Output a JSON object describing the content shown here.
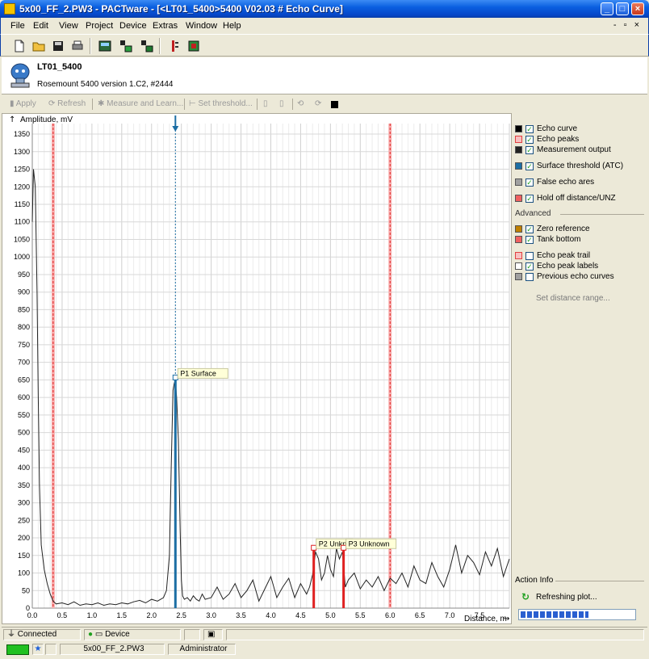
{
  "window": {
    "title": "5x00_FF_2.PW3 - PACTware - [<LT01_5400>5400 V02.03 # Echo Curve]",
    "controls": [
      "_",
      "□",
      "×"
    ]
  },
  "menu": {
    "items": [
      "File",
      "Edit",
      "View",
      "Project",
      "Device",
      "Extras",
      "Window",
      "Help"
    ],
    "mdi_controls": "- ▫ ×"
  },
  "device": {
    "tag": "LT01_5400",
    "version": "Rosemount 5400 version 1.C2, #2444"
  },
  "curve_toolbar": {
    "apply": "Apply",
    "refresh": "Refresh",
    "measure": "Measure and Learn...",
    "set_threshold": "Set threshold..."
  },
  "legend": {
    "items": [
      {
        "label": "Echo curve",
        "checked": true,
        "color": "#000000"
      },
      {
        "label": "Echo peaks",
        "checked": true,
        "color": "#e04040"
      },
      {
        "label": "Measurement output",
        "checked": true,
        "color": "#222222"
      },
      {
        "label": "Surface threshold (ATC)",
        "checked": true,
        "color": "#1c6ea4"
      },
      {
        "label": "False echo ares",
        "checked": true,
        "color": "#a0a0a0"
      },
      {
        "label": "Hold off distance/UNZ",
        "checked": true,
        "color": "#e04040"
      }
    ],
    "advanced_label": "Advanced",
    "advanced": [
      {
        "label": "Zero reference",
        "checked": true,
        "color": "#c08000"
      },
      {
        "label": "Tank bottom",
        "checked": true,
        "color": "#e04040"
      },
      {
        "label": "Echo peak trail",
        "checked": false,
        "color": "#e04040"
      },
      {
        "label": "Echo peak labels",
        "checked": true,
        "color": "#ffffff"
      },
      {
        "label": "Previous echo curves",
        "checked": false,
        "color": "#a0a0a0"
      }
    ],
    "set_distance_range": "Set distance range..."
  },
  "action_info": {
    "label": "Action Info",
    "text": "Refreshing plot...",
    "progress": 0.6
  },
  "status": {
    "connected": "Connected",
    "device": "Device",
    "project": "5x00_FF_2.PW3",
    "user": "Administrator"
  },
  "chart_data": {
    "type": "line",
    "ylabel": "Amplitude, mV",
    "xlabel": "Distance, m",
    "xlim": [
      0,
      8
    ],
    "ylim": [
      0,
      1380
    ],
    "x_ticks": [
      "0.0",
      "0.5",
      "1.0",
      "1.5",
      "2.0",
      "2.5",
      "3.0",
      "3.5",
      "4.0",
      "4.5",
      "5.0",
      "5.5",
      "6.0",
      "6.5",
      "7.0",
      "7.5"
    ],
    "y_ticks": [
      "0",
      "50",
      "100",
      "150",
      "200",
      "250",
      "300",
      "350",
      "400",
      "450",
      "500",
      "550",
      "600",
      "650",
      "700",
      "750",
      "800",
      "850",
      "900",
      "950",
      "1000",
      "1050",
      "1100",
      "1150",
      "1200",
      "1250",
      "1300",
      "1350"
    ],
    "grid": true,
    "hold_off_distance": 0.35,
    "tank_bottom": 6.0,
    "surface_threshold_x": 2.4,
    "peaks": [
      {
        "label": "P1 Surface",
        "x": 2.4,
        "amplitude": 650
      },
      {
        "label": "P2 Unkn",
        "x": 4.72,
        "amplitude": 165
      },
      {
        "label": "P3 Unknown",
        "x": 5.22,
        "amplitude": 165
      }
    ],
    "series": [
      {
        "x": [
          0.0,
          0.02,
          0.05,
          0.08,
          0.1,
          0.12,
          0.15,
          0.2,
          0.25,
          0.3,
          0.35,
          0.4,
          0.5,
          0.6,
          0.7,
          0.8,
          0.9,
          1.0,
          1.1,
          1.2,
          1.3,
          1.4,
          1.5,
          1.6,
          1.7,
          1.8,
          1.9,
          2.0,
          2.1,
          2.2,
          2.25,
          2.3,
          2.33,
          2.36,
          2.38,
          2.4,
          2.42,
          2.45,
          2.48,
          2.5,
          2.52,
          2.55,
          2.6,
          2.65,
          2.7,
          2.75,
          2.8,
          2.85,
          2.9,
          3.0,
          3.1,
          3.2,
          3.3,
          3.4,
          3.5,
          3.6,
          3.7,
          3.8,
          3.9,
          4.0,
          4.1,
          4.2,
          4.3,
          4.4,
          4.5,
          4.6,
          4.65,
          4.7,
          4.75,
          4.8,
          4.85,
          4.9,
          4.95,
          5.0,
          5.05,
          5.1,
          5.15,
          5.2,
          5.25,
          5.3,
          5.4,
          5.5,
          5.6,
          5.7,
          5.8,
          5.9,
          6.0,
          6.1,
          6.2,
          6.3,
          6.4,
          6.5,
          6.6,
          6.7,
          6.8,
          6.9,
          7.0,
          7.1,
          7.2,
          7.3,
          7.4,
          7.5,
          7.6,
          7.7,
          7.8,
          7.9,
          8.0
        ],
        "y": [
          1100,
          1250,
          1200,
          900,
          600,
          350,
          180,
          110,
          70,
          40,
          20,
          12,
          15,
          10,
          18,
          8,
          12,
          10,
          15,
          8,
          12,
          10,
          15,
          12,
          18,
          22,
          15,
          25,
          20,
          30,
          50,
          150,
          400,
          620,
          640,
          650,
          600,
          480,
          220,
          80,
          35,
          25,
          30,
          20,
          35,
          25,
          20,
          40,
          25,
          30,
          60,
          25,
          40,
          70,
          30,
          50,
          80,
          20,
          55,
          90,
          30,
          60,
          85,
          30,
          70,
          40,
          60,
          95,
          160,
          140,
          80,
          100,
          150,
          110,
          90,
          170,
          140,
          160,
          60,
          80,
          100,
          55,
          80,
          60,
          90,
          50,
          85,
          70,
          100,
          60,
          120,
          80,
          70,
          130,
          90,
          60,
          110,
          180,
          100,
          150,
          130,
          95,
          160,
          120,
          170,
          90,
          140
        ]
      }
    ]
  }
}
